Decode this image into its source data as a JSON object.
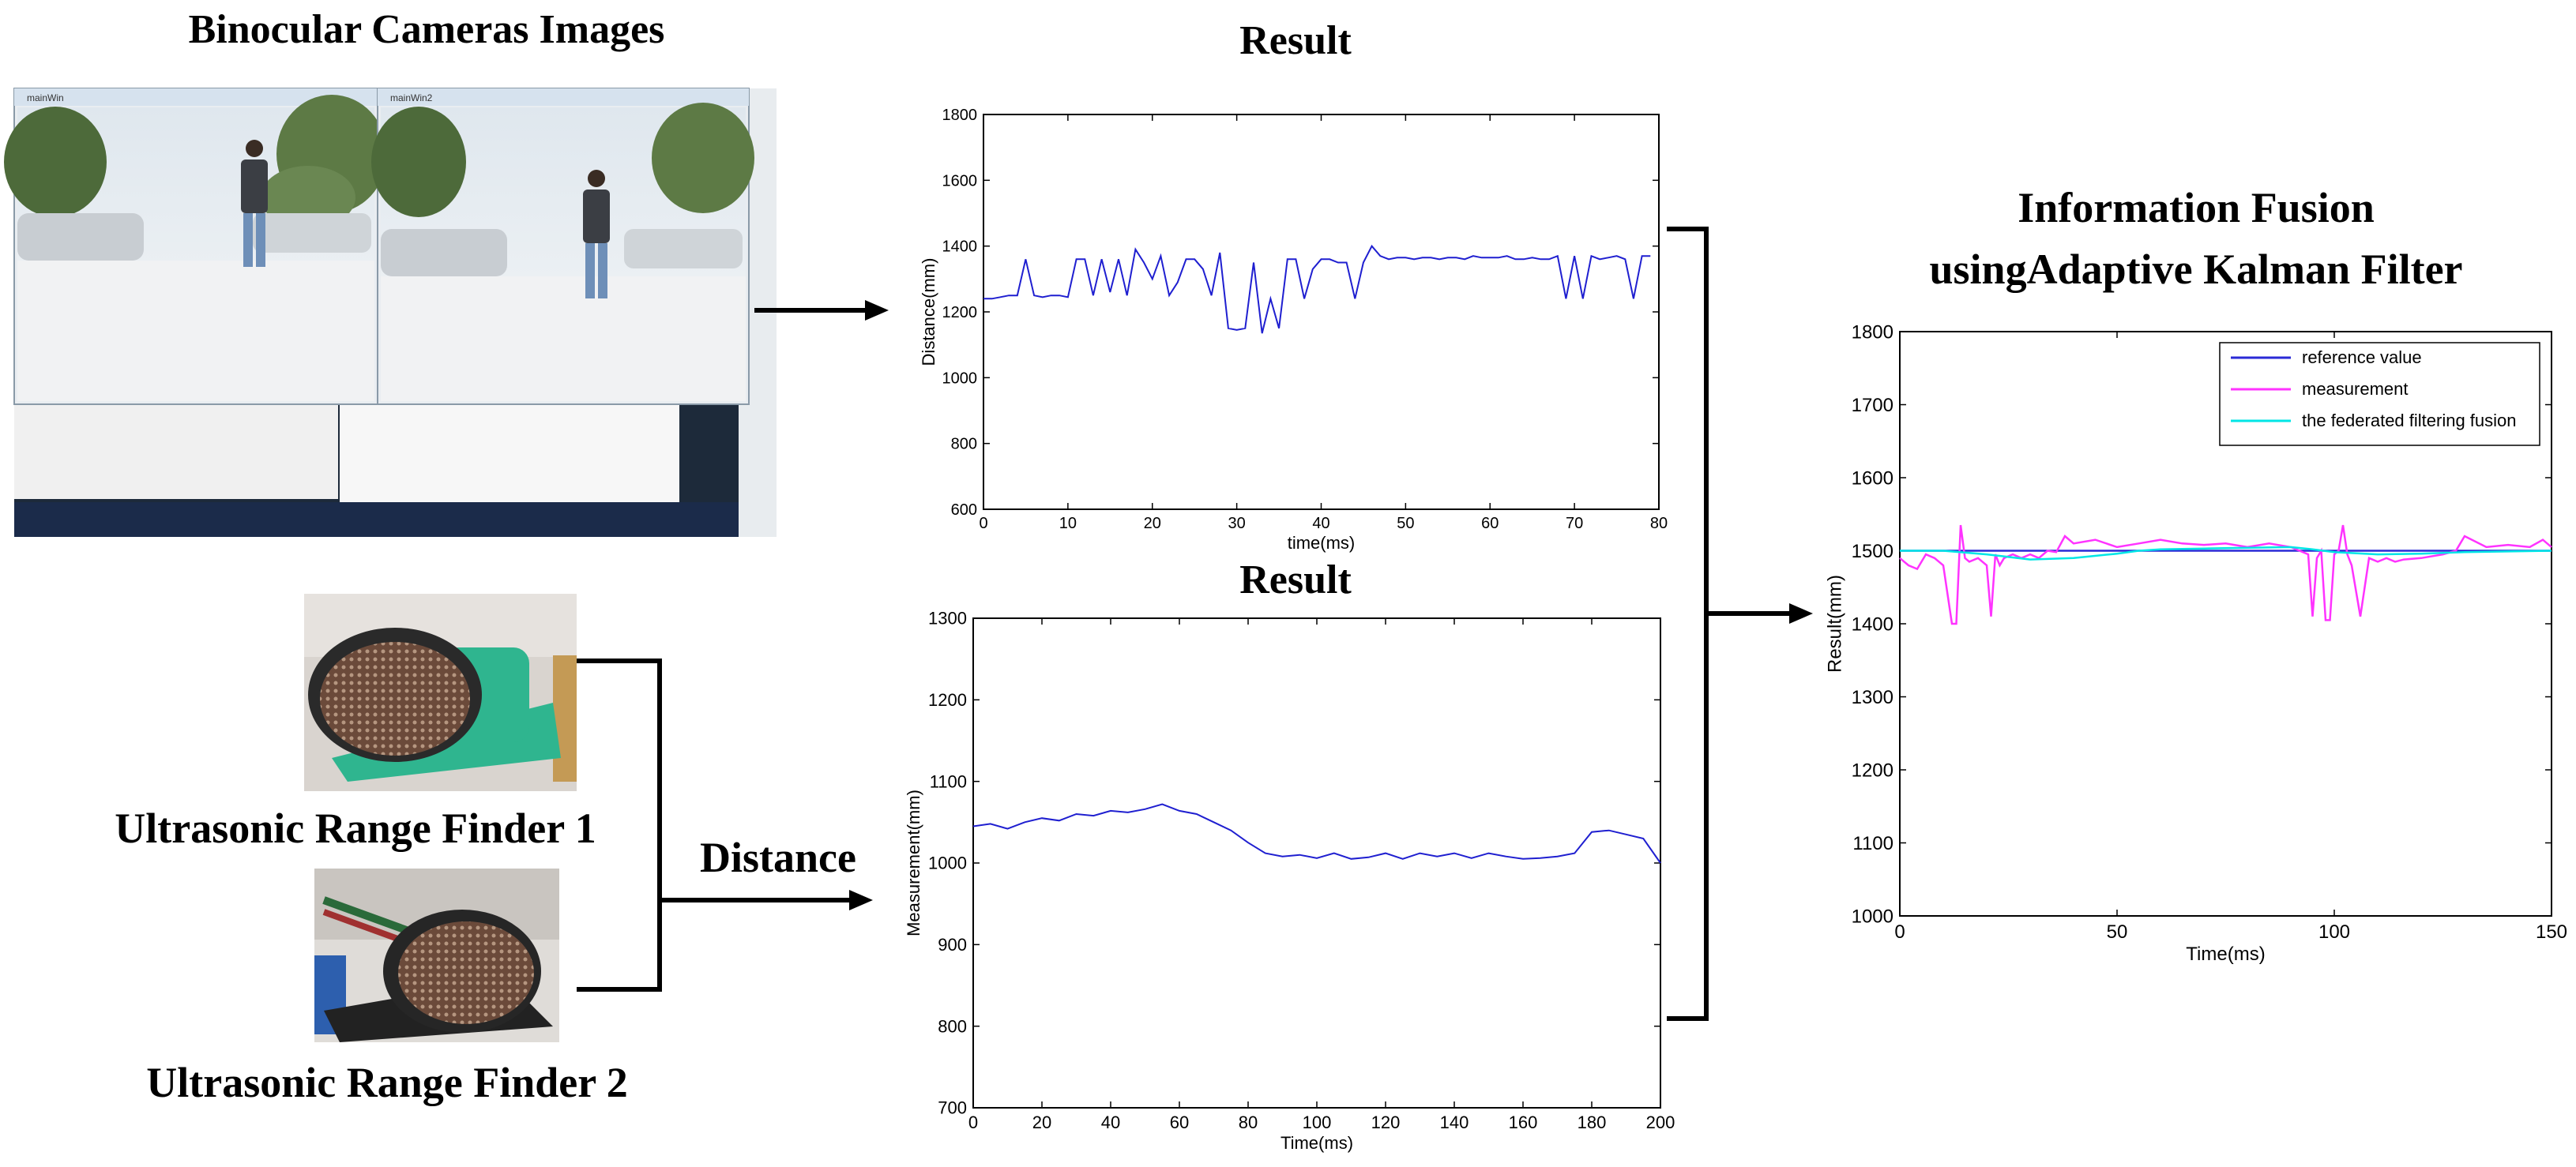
{
  "titles": {
    "binocular": "Binocular Cameras Images",
    "result_top": "Result",
    "result_bottom": "Result",
    "fusion_line1": "Information  Fusion",
    "fusion_line2": "usingAdaptive Kalman Filter",
    "ultrasonic1": "Ultrasonic Range Finder 1",
    "ultrasonic2": "Ultrasonic Range Finder 2",
    "distance_label": "Distance"
  },
  "screenshot": {
    "window1_title": "mainWin",
    "window2_title": "mainWin2"
  },
  "colors": {
    "blue_series": "#1f1fd0",
    "reference": "#2a2ad6",
    "measurement": "#ff33ff",
    "fusion": "#00e6e6",
    "sensor_green": "#2fb58f",
    "sensor_blue": "#2d5fae"
  },
  "chart_data": [
    {
      "type": "line",
      "title": "Result",
      "xlabel": "time(ms)",
      "ylabel": "Distance(mm)",
      "xlim": [
        0,
        80
      ],
      "ylim": [
        600,
        1800
      ],
      "xticks": [
        0,
        10,
        20,
        30,
        40,
        50,
        60,
        70,
        80
      ],
      "yticks": [
        600,
        800,
        1000,
        1200,
        1400,
        1600,
        1800
      ],
      "series": [
        {
          "x": [
            0,
            1,
            2,
            3,
            4,
            5,
            6,
            7,
            8,
            9,
            10,
            11,
            12,
            13,
            14,
            15,
            16,
            17,
            18,
            19,
            20,
            21,
            22,
            23,
            24,
            25,
            26,
            27,
            28,
            29,
            30,
            31,
            32,
            33,
            34,
            35,
            36,
            37,
            38,
            39,
            40,
            41,
            42,
            43,
            44,
            45,
            46,
            47,
            48,
            49,
            50,
            51,
            52,
            53,
            54,
            55,
            56,
            57,
            58,
            59,
            60,
            61,
            62,
            63,
            64,
            65,
            66,
            67,
            68,
            69,
            70,
            71,
            72,
            73,
            74,
            75,
            76,
            77,
            78,
            79
          ],
          "y": [
            1240,
            1240,
            1245,
            1250,
            1250,
            1360,
            1250,
            1245,
            1250,
            1250,
            1245,
            1360,
            1360,
            1250,
            1360,
            1260,
            1360,
            1250,
            1390,
            1350,
            1300,
            1370,
            1250,
            1290,
            1360,
            1360,
            1330,
            1250,
            1380,
            1150,
            1145,
            1150,
            1350,
            1135,
            1240,
            1150,
            1360,
            1360,
            1240,
            1330,
            1360,
            1360,
            1350,
            1350,
            1240,
            1350,
            1400,
            1370,
            1360,
            1365,
            1365,
            1360,
            1365,
            1365,
            1360,
            1365,
            1365,
            1360,
            1370,
            1365,
            1365,
            1365,
            1370,
            1360,
            1360,
            1365,
            1360,
            1360,
            1370,
            1240,
            1370,
            1240,
            1370,
            1360,
            1365,
            1370,
            1360,
            1240,
            1370,
            1370
          ]
        }
      ]
    },
    {
      "type": "line",
      "title": "Result",
      "xlabel": "Time(ms)",
      "ylabel": "Measurement(mm)",
      "xlim": [
        0,
        200
      ],
      "ylim": [
        700,
        1300
      ],
      "xticks": [
        0,
        20,
        40,
        60,
        80,
        100,
        120,
        140,
        160,
        180,
        200
      ],
      "yticks": [
        700,
        800,
        900,
        1000,
        1100,
        1200,
        1300
      ],
      "series": [
        {
          "x": [
            0,
            5,
            10,
            15,
            20,
            25,
            30,
            35,
            40,
            45,
            50,
            55,
            60,
            65,
            70,
            75,
            80,
            85,
            90,
            95,
            100,
            105,
            110,
            115,
            120,
            125,
            130,
            135,
            140,
            145,
            150,
            155,
            160,
            165,
            170,
            175,
            180,
            185,
            190,
            195,
            200
          ],
          "y": [
            1045,
            1048,
            1042,
            1050,
            1055,
            1052,
            1060,
            1058,
            1064,
            1062,
            1066,
            1072,
            1064,
            1060,
            1050,
            1040,
            1025,
            1012,
            1008,
            1010,
            1006,
            1012,
            1005,
            1007,
            1012,
            1005,
            1012,
            1008,
            1012,
            1006,
            1012,
            1008,
            1005,
            1006,
            1008,
            1012,
            1038,
            1040,
            1035,
            1030,
            1000
          ]
        }
      ]
    },
    {
      "type": "line",
      "xlabel": "Time(ms)",
      "ylabel": "Result(mm)",
      "xlim": [
        0,
        150
      ],
      "ylim": [
        1000,
        1800
      ],
      "xticks": [
        0,
        50,
        100,
        150
      ],
      "yticks": [
        1000,
        1100,
        1200,
        1300,
        1400,
        1500,
        1600,
        1700,
        1800
      ],
      "legend_position": "top-right",
      "series": [
        {
          "name": "reference value",
          "color_key": "reference",
          "x": [
            0,
            150
          ],
          "y": [
            1500,
            1500
          ]
        },
        {
          "name": "measurement",
          "color_key": "measurement",
          "x": [
            0,
            2,
            4,
            6,
            8,
            10,
            12,
            13,
            14,
            15,
            16,
            18,
            20,
            21,
            22,
            23,
            24,
            26,
            28,
            30,
            32,
            34,
            36,
            38,
            40,
            45,
            50,
            55,
            60,
            65,
            70,
            75,
            80,
            85,
            90,
            92,
            94,
            95,
            96,
            97,
            98,
            99,
            100,
            101,
            102,
            103,
            104,
            106,
            108,
            110,
            112,
            114,
            116,
            120,
            125,
            128,
            130,
            135,
            140,
            145,
            148,
            150
          ],
          "y": [
            1490,
            1480,
            1475,
            1495,
            1490,
            1480,
            1400,
            1400,
            1535,
            1490,
            1485,
            1490,
            1480,
            1410,
            1495,
            1480,
            1490,
            1495,
            1490,
            1495,
            1490,
            1500,
            1498,
            1520,
            1510,
            1515,
            1505,
            1510,
            1515,
            1510,
            1508,
            1510,
            1505,
            1510,
            1505,
            1500,
            1495,
            1410,
            1490,
            1500,
            1405,
            1405,
            1495,
            1500,
            1535,
            1495,
            1480,
            1410,
            1490,
            1485,
            1490,
            1485,
            1488,
            1490,
            1495,
            1500,
            1520,
            1505,
            1508,
            1505,
            1515,
            1505
          ]
        },
        {
          "name": "the federated filtering fusion",
          "color_key": "fusion",
          "x": [
            0,
            10,
            20,
            30,
            40,
            50,
            55,
            60,
            70,
            80,
            90,
            95,
            100,
            110,
            120,
            130,
            140,
            150
          ],
          "y": [
            1500,
            1500,
            1495,
            1488,
            1490,
            1496,
            1500,
            1502,
            1503,
            1504,
            1505,
            1502,
            1498,
            1495,
            1496,
            1498,
            1499,
            1500
          ]
        }
      ]
    }
  ]
}
